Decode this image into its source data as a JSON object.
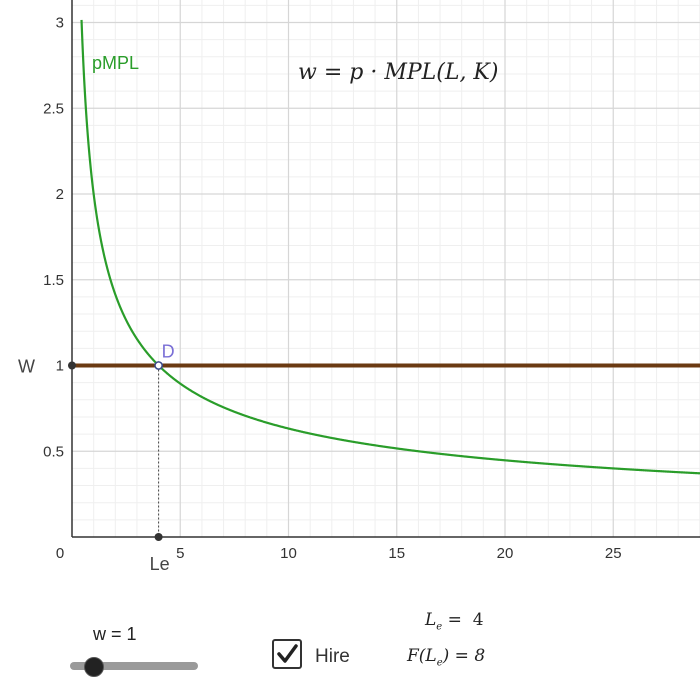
{
  "chart_data": {
    "type": "line",
    "title": "",
    "xlabel": "",
    "ylabel": "",
    "xlim": [
      0,
      29
    ],
    "ylim": [
      0,
      3.1
    ],
    "x_ticks": [
      "5",
      "10",
      "15",
      "20",
      "25"
    ],
    "y_ticks": [
      "0.5",
      "1",
      "1.5",
      "2",
      "2.5",
      "3"
    ],
    "origin_label": "0",
    "grid": true,
    "series": [
      {
        "name": "pMPL",
        "color": "#2a9d2a",
        "formula": "2/sqrt(L)",
        "x": [
          0.44,
          0.5,
          0.75,
          1,
          1.5,
          2,
          3,
          4,
          5,
          7,
          10,
          15,
          20,
          25,
          29
        ],
        "y": [
          3.02,
          2.83,
          2.31,
          2.0,
          1.63,
          1.41,
          1.15,
          1.0,
          0.89,
          0.76,
          0.63,
          0.52,
          0.45,
          0.4,
          0.37
        ]
      },
      {
        "name": "W",
        "color": "#6b3a12",
        "x": [
          0,
          29
        ],
        "y": [
          1,
          1
        ]
      }
    ],
    "annotations": {
      "equation": "w = p · MPL(L, K)",
      "point_label": "D",
      "point": {
        "x": 4,
        "y": 1
      },
      "y_marker_label": "W",
      "x_marker_label": "Le"
    }
  },
  "controls": {
    "slider_label": "w = 1",
    "slider_value": 1,
    "hire_label": "Hire",
    "hire_checked": true,
    "le_var": "L",
    "le_sub": "e",
    "le_value": "4",
    "f_prefix": "F(L",
    "f_suffix": ") = 8"
  },
  "colors": {
    "curve": "#2a9d2a",
    "wage_line": "#6b3a12",
    "point_label": "#7a6fd6",
    "grid_major": "#d6d6d6",
    "grid_minor": "#efefef"
  }
}
